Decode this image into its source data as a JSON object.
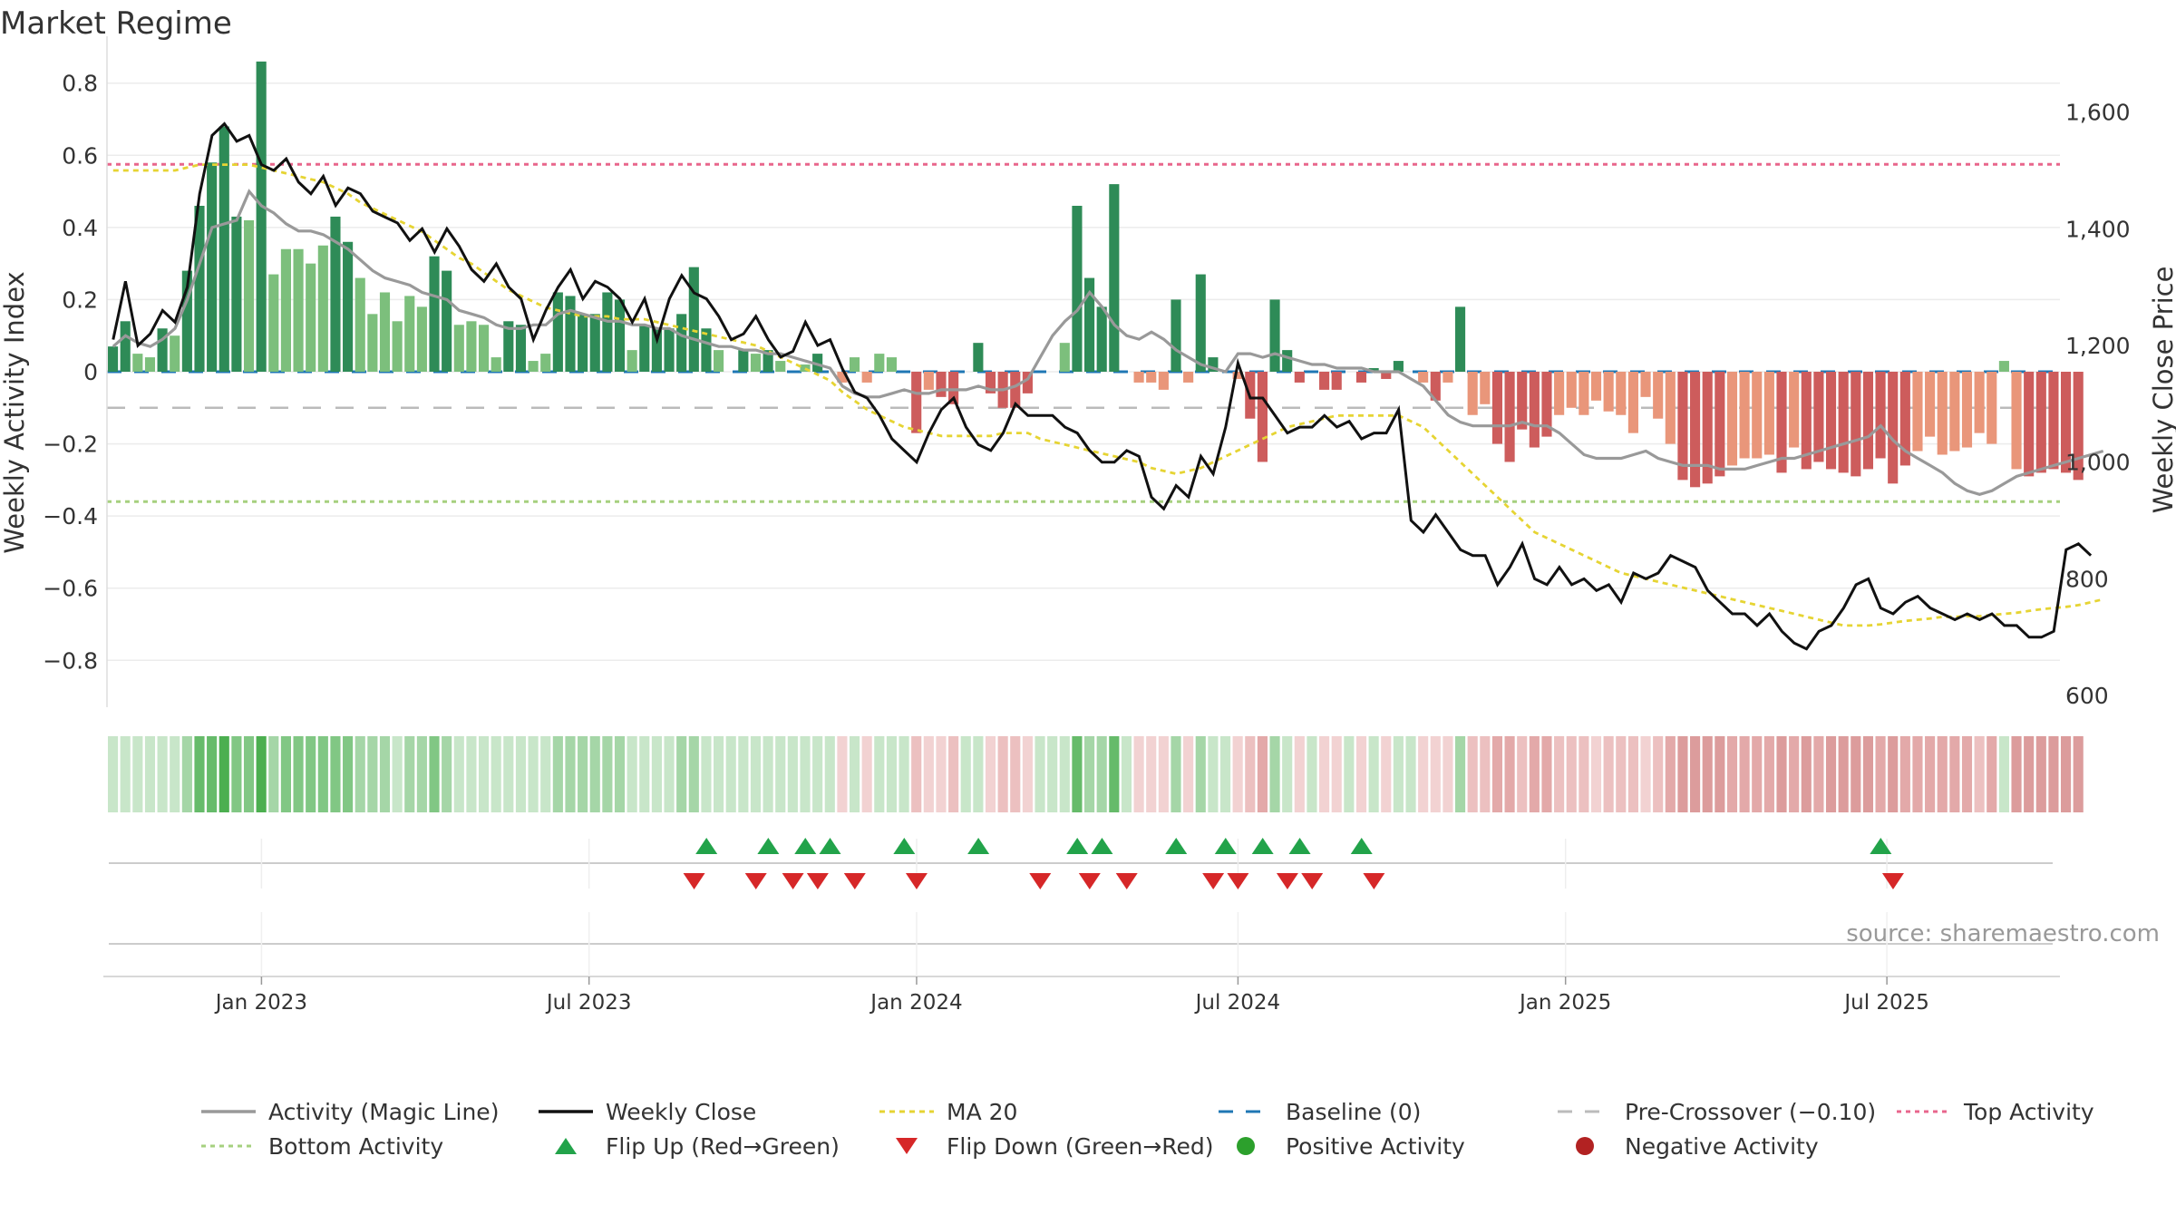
{
  "title": "Market Regime",
  "source": "source: sharemaestro.com",
  "colors": {
    "green_dark": "#2e8b57",
    "green_light": "#7cbf7c",
    "red_dark": "#cd5c5c",
    "red_light": "#e9967a",
    "magic_line": "#999999",
    "close_line": "#111111",
    "ma20": "#e6d433",
    "baseline": "#1f77b4",
    "precross": "#bbbbbb",
    "top": "#e8668c",
    "bottom": "#a6d07f",
    "flip_up": "#22a34a",
    "flip_down": "#d62728"
  },
  "legend": [
    {
      "key": "activity",
      "label": "Activity (Magic Line)"
    },
    {
      "key": "close",
      "label": "Weekly Close"
    },
    {
      "key": "ma20",
      "label": "MA 20"
    },
    {
      "key": "baseline",
      "label": "Baseline (0)"
    },
    {
      "key": "precross",
      "label": "Pre-Crossover (−0.10)"
    },
    {
      "key": "top",
      "label": "Top Activity"
    },
    {
      "key": "bottom",
      "label": "Bottom Activity"
    },
    {
      "key": "flipup",
      "label": "Flip Up (Red→Green)"
    },
    {
      "key": "flipdown",
      "label": "Flip Down (Green→Red)"
    },
    {
      "key": "pos",
      "label": "Positive Activity"
    },
    {
      "key": "neg",
      "label": "Negative Activity"
    }
  ],
  "chart_data": {
    "type": "bar",
    "title": "Market Regime",
    "ylabel": "Weekly Activity Index",
    "y2label": "Weekly Close Price",
    "ylim": [
      -0.93,
      0.93
    ],
    "y2lim": [
      580,
      1730
    ],
    "yticks": [
      "0.8",
      "0.6",
      "0.4",
      "0.2",
      "0",
      "−0.2",
      "−0.4",
      "−0.6",
      "−0.8"
    ],
    "yticks_values": [
      0.8,
      0.6,
      0.4,
      0.2,
      0,
      -0.2,
      -0.4,
      -0.6,
      -0.8
    ],
    "y2ticks": [
      "1,600",
      "1,400",
      "1,200",
      "1,000",
      "800",
      "600"
    ],
    "y2ticks_values": [
      1600,
      1400,
      1200,
      1000,
      800,
      600
    ],
    "xticks": [
      "Jan 2023",
      "Jul 2023",
      "Jan 2024",
      "Jul 2024",
      "Jan 2025",
      "Jul 2025"
    ],
    "xticks_week": [
      12,
      38.5,
      65,
      91,
      117.5,
      143.5
    ],
    "reference_lines": {
      "top": 0.575,
      "bottom": -0.36,
      "precross": -0.1,
      "baseline": 0
    },
    "weeks": 158,
    "activity": [
      0.07,
      0.14,
      0.05,
      0.04,
      0.12,
      0.1,
      0.28,
      0.46,
      0.58,
      0.68,
      0.43,
      0.42,
      0.86,
      0.27,
      0.34,
      0.34,
      0.3,
      0.35,
      0.43,
      0.36,
      0.26,
      0.16,
      0.22,
      0.14,
      0.21,
      0.18,
      0.32,
      0.28,
      0.13,
      0.14,
      0.13,
      0.04,
      0.14,
      0.13,
      0.03,
      0.05,
      0.22,
      0.21,
      0.16,
      0.16,
      0.22,
      0.2,
      0.06,
      0.13,
      0.12,
      0.12,
      0.16,
      0.29,
      0.12,
      0.06,
      0.0,
      0.06,
      0.05,
      0.06,
      0.03,
      0.0,
      0.02,
      0.05,
      0.0,
      -0.03,
      0.04,
      -0.03,
      0.05,
      0.04,
      0.0,
      -0.17,
      -0.05,
      -0.07,
      -0.09,
      0.0,
      0.08,
      -0.06,
      -0.1,
      -0.1,
      -0.06,
      0.0,
      0.0,
      0.08,
      0.46,
      0.26,
      0.18,
      0.52,
      0.0,
      -0.03,
      -0.03,
      -0.05,
      0.2,
      -0.03,
      0.27,
      0.04,
      0.0,
      -0.02,
      -0.13,
      -0.25,
      0.2,
      0.06,
      -0.03,
      0.0,
      -0.05,
      -0.05,
      0.0,
      -0.03,
      0.01,
      -0.02,
      0.03,
      0.0,
      -0.03,
      -0.08,
      -0.03,
      0.18,
      -0.12,
      -0.09,
      -0.2,
      -0.25,
      -0.16,
      -0.21,
      -0.18,
      -0.12,
      -0.1,
      -0.12,
      -0.08,
      -0.11,
      -0.12,
      -0.17,
      -0.07,
      -0.13,
      -0.2,
      -0.3,
      -0.32,
      -0.31,
      -0.29,
      -0.26,
      -0.24,
      -0.24,
      -0.23,
      -0.28,
      -0.21,
      -0.27,
      -0.25,
      -0.27,
      -0.28,
      -0.29,
      -0.27,
      -0.24,
      -0.31,
      -0.26,
      -0.22,
      -0.18,
      -0.23,
      -0.22,
      -0.21,
      -0.17,
      -0.2,
      0.03,
      -0.27,
      -0.29,
      -0.28,
      -0.27,
      -0.28,
      -0.3
    ],
    "magic_line": [
      0.07,
      0.1,
      0.08,
      0.07,
      0.09,
      0.12,
      0.2,
      0.3,
      0.4,
      0.41,
      0.42,
      0.5,
      0.46,
      0.44,
      0.41,
      0.39,
      0.39,
      0.38,
      0.36,
      0.34,
      0.31,
      0.28,
      0.26,
      0.25,
      0.24,
      0.22,
      0.21,
      0.2,
      0.17,
      0.16,
      0.15,
      0.13,
      0.12,
      0.12,
      0.13,
      0.13,
      0.16,
      0.17,
      0.16,
      0.15,
      0.14,
      0.14,
      0.13,
      0.13,
      0.12,
      0.12,
      0.1,
      0.09,
      0.08,
      0.07,
      0.07,
      0.06,
      0.06,
      0.05,
      0.05,
      0.04,
      0.03,
      0.02,
      0.01,
      -0.04,
      -0.06,
      -0.07,
      -0.07,
      -0.06,
      -0.05,
      -0.06,
      -0.06,
      -0.05,
      -0.05,
      -0.05,
      -0.04,
      -0.05,
      -0.05,
      -0.04,
      -0.02,
      0.04,
      0.1,
      0.14,
      0.17,
      0.22,
      0.18,
      0.13,
      0.1,
      0.09,
      0.11,
      0.09,
      0.06,
      0.04,
      0.02,
      0.01,
      0.0,
      0.05,
      0.05,
      0.04,
      0.05,
      0.04,
      0.03,
      0.02,
      0.02,
      0.01,
      0.01,
      0.01,
      0.0,
      0.0,
      0.0,
      -0.02,
      -0.04,
      -0.08,
      -0.12,
      -0.14,
      -0.15,
      -0.15,
      -0.15,
      -0.15,
      -0.14,
      -0.15,
      -0.15,
      -0.17,
      -0.2,
      -0.23,
      -0.24,
      -0.24,
      -0.24,
      -0.23,
      -0.22,
      -0.24,
      -0.25,
      -0.26,
      -0.26,
      -0.26,
      -0.27,
      -0.27,
      -0.27,
      -0.26,
      -0.25,
      -0.24,
      -0.24,
      -0.23,
      -0.22,
      -0.21,
      -0.2,
      -0.19,
      -0.18,
      -0.15,
      -0.19,
      -0.22,
      -0.24,
      -0.26,
      -0.28,
      -0.31,
      -0.33,
      -0.34,
      -0.33,
      -0.31,
      -0.29,
      -0.28,
      -0.27,
      -0.26,
      -0.25,
      -0.24,
      -0.23,
      -0.22
    ],
    "weekly_close": [
      1210,
      1310,
      1200,
      1220,
      1260,
      1240,
      1300,
      1460,
      1560,
      1580,
      1550,
      1560,
      1510,
      1500,
      1520,
      1480,
      1460,
      1490,
      1440,
      1470,
      1460,
      1430,
      1420,
      1410,
      1380,
      1400,
      1360,
      1400,
      1370,
      1330,
      1310,
      1340,
      1300,
      1280,
      1210,
      1260,
      1300,
      1330,
      1280,
      1310,
      1300,
      1280,
      1240,
      1280,
      1210,
      1280,
      1320,
      1290,
      1280,
      1250,
      1210,
      1220,
      1250,
      1210,
      1180,
      1190,
      1240,
      1200,
      1210,
      1160,
      1120,
      1110,
      1080,
      1040,
      1020,
      1000,
      1050,
      1090,
      1110,
      1060,
      1030,
      1020,
      1050,
      1100,
      1080,
      1080,
      1080,
      1060,
      1050,
      1020,
      1000,
      1000,
      1020,
      1010,
      940,
      920,
      960,
      940,
      1010,
      980,
      1060,
      1170,
      1110,
      1110,
      1080,
      1050,
      1060,
      1060,
      1080,
      1060,
      1070,
      1040,
      1050,
      1050,
      1090,
      900,
      880,
      910,
      880,
      850,
      840,
      840,
      790,
      820,
      860,
      800,
      790,
      820,
      790,
      800,
      780,
      790,
      760,
      810,
      800,
      810,
      840,
      830,
      820,
      780,
      760,
      740,
      740,
      720,
      740,
      710,
      690,
      680,
      710,
      720,
      750,
      790,
      800,
      750,
      740,
      760,
      770,
      750,
      740,
      730,
      740,
      730,
      740,
      720,
      720,
      700,
      700,
      710,
      850,
      860,
      840
    ],
    "ma20": [
      1500,
      1500,
      1500,
      1500,
      1500,
      1500,
      1505,
      1510,
      1510,
      1510,
      1510,
      1510,
      1505,
      1500,
      1495,
      1490,
      1485,
      1480,
      1470,
      1460,
      1445,
      1435,
      1425,
      1415,
      1405,
      1395,
      1380,
      1365,
      1350,
      1340,
      1325,
      1310,
      1295,
      1285,
      1275,
      1265,
      1260,
      1255,
      1250,
      1250,
      1250,
      1245,
      1245,
      1245,
      1240,
      1235,
      1230,
      1225,
      1220,
      1215,
      1210,
      1205,
      1200,
      1190,
      1180,
      1170,
      1160,
      1150,
      1140,
      1120,
      1105,
      1090,
      1080,
      1070,
      1060,
      1055,
      1050,
      1045,
      1045,
      1045,
      1045,
      1045,
      1050,
      1050,
      1050,
      1040,
      1035,
      1030,
      1025,
      1020,
      1015,
      1010,
      1005,
      1000,
      990,
      985,
      980,
      985,
      990,
      1000,
      1010,
      1020,
      1030,
      1040,
      1050,
      1060,
      1065,
      1070,
      1075,
      1080,
      1080,
      1080,
      1080,
      1080,
      1080,
      1070,
      1060,
      1040,
      1020,
      1000,
      980,
      960,
      940,
      920,
      900,
      880,
      870,
      860,
      850,
      840,
      830,
      820,
      810,
      805,
      800,
      795,
      790,
      785,
      780,
      775,
      770,
      765,
      760,
      755,
      750,
      745,
      740,
      735,
      730,
      725,
      720,
      720,
      720,
      722,
      725,
      728,
      730,
      732,
      735,
      735,
      736,
      736,
      738,
      740,
      742,
      745,
      748,
      750,
      752,
      755,
      760,
      765
    ],
    "flip_up_weeks": [
      48,
      53,
      56,
      58,
      64,
      70,
      78,
      80,
      86,
      90,
      93,
      96,
      101,
      143
    ],
    "flip_down_weeks": [
      47,
      52,
      55,
      57,
      60,
      65,
      75,
      79,
      82,
      89,
      91,
      95,
      97,
      102,
      144
    ]
  }
}
